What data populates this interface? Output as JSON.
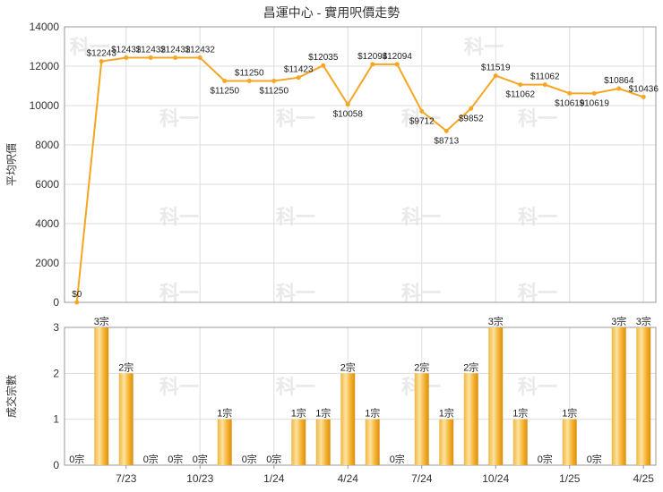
{
  "chart_data": [
    {
      "type": "line",
      "title": "昌運中心 - 實用呎價走勢",
      "ylabel": "平均呎價",
      "ylim": [
        0,
        14000
      ],
      "yticks": [
        0,
        2000,
        4000,
        6000,
        8000,
        10000,
        12000,
        14000
      ],
      "grid": true,
      "line_color": "#f5a623",
      "series": [
        {
          "values": [
            0,
            12243,
            12432,
            12432,
            12432,
            12432,
            11250,
            11250,
            11250,
            11423,
            12035,
            10058,
            12094,
            12094,
            9712,
            8713,
            9852,
            11519,
            11062,
            11062,
            10619,
            10619,
            10864,
            10436
          ],
          "labels": [
            "$0",
            "$12243",
            "$12432",
            "$12432",
            "$12432",
            "$12432",
            "$11250",
            "$11250",
            "$11250",
            "$11423",
            "$12035",
            "$10058",
            "$12094",
            "$12094",
            "$9712",
            "$8713",
            "$9852",
            "$11519",
            "$11062",
            "$11062",
            "$10619",
            "$10619",
            "$10864",
            "$10436"
          ]
        }
      ]
    },
    {
      "type": "bar",
      "ylabel": "成交宗數",
      "ylim": [
        0,
        3
      ],
      "yticks": [
        0,
        1,
        2,
        3
      ],
      "grid": true,
      "bar_color": "#f5a623",
      "categories": [
        "7/23",
        "10/23",
        "1/24",
        "4/24",
        "7/24",
        "10/24",
        "1/25",
        "4/25"
      ],
      "values": [
        0,
        3,
        2,
        0,
        0,
        0,
        1,
        0,
        0,
        1,
        1,
        2,
        1,
        0,
        2,
        1,
        2,
        3,
        1,
        0,
        1,
        0,
        3,
        3
      ],
      "labels": [
        "0宗",
        "3宗",
        "2宗",
        "0宗",
        "0宗",
        "0宗",
        "1宗",
        "0宗",
        "0宗",
        "1宗",
        "1宗",
        "2宗",
        "1宗",
        "0宗",
        "2宗",
        "1宗",
        "2宗",
        "3宗",
        "1宗",
        "0宗",
        "1宗",
        "0宗",
        "3宗",
        "3宗"
      ]
    }
  ],
  "watermark": "科一"
}
